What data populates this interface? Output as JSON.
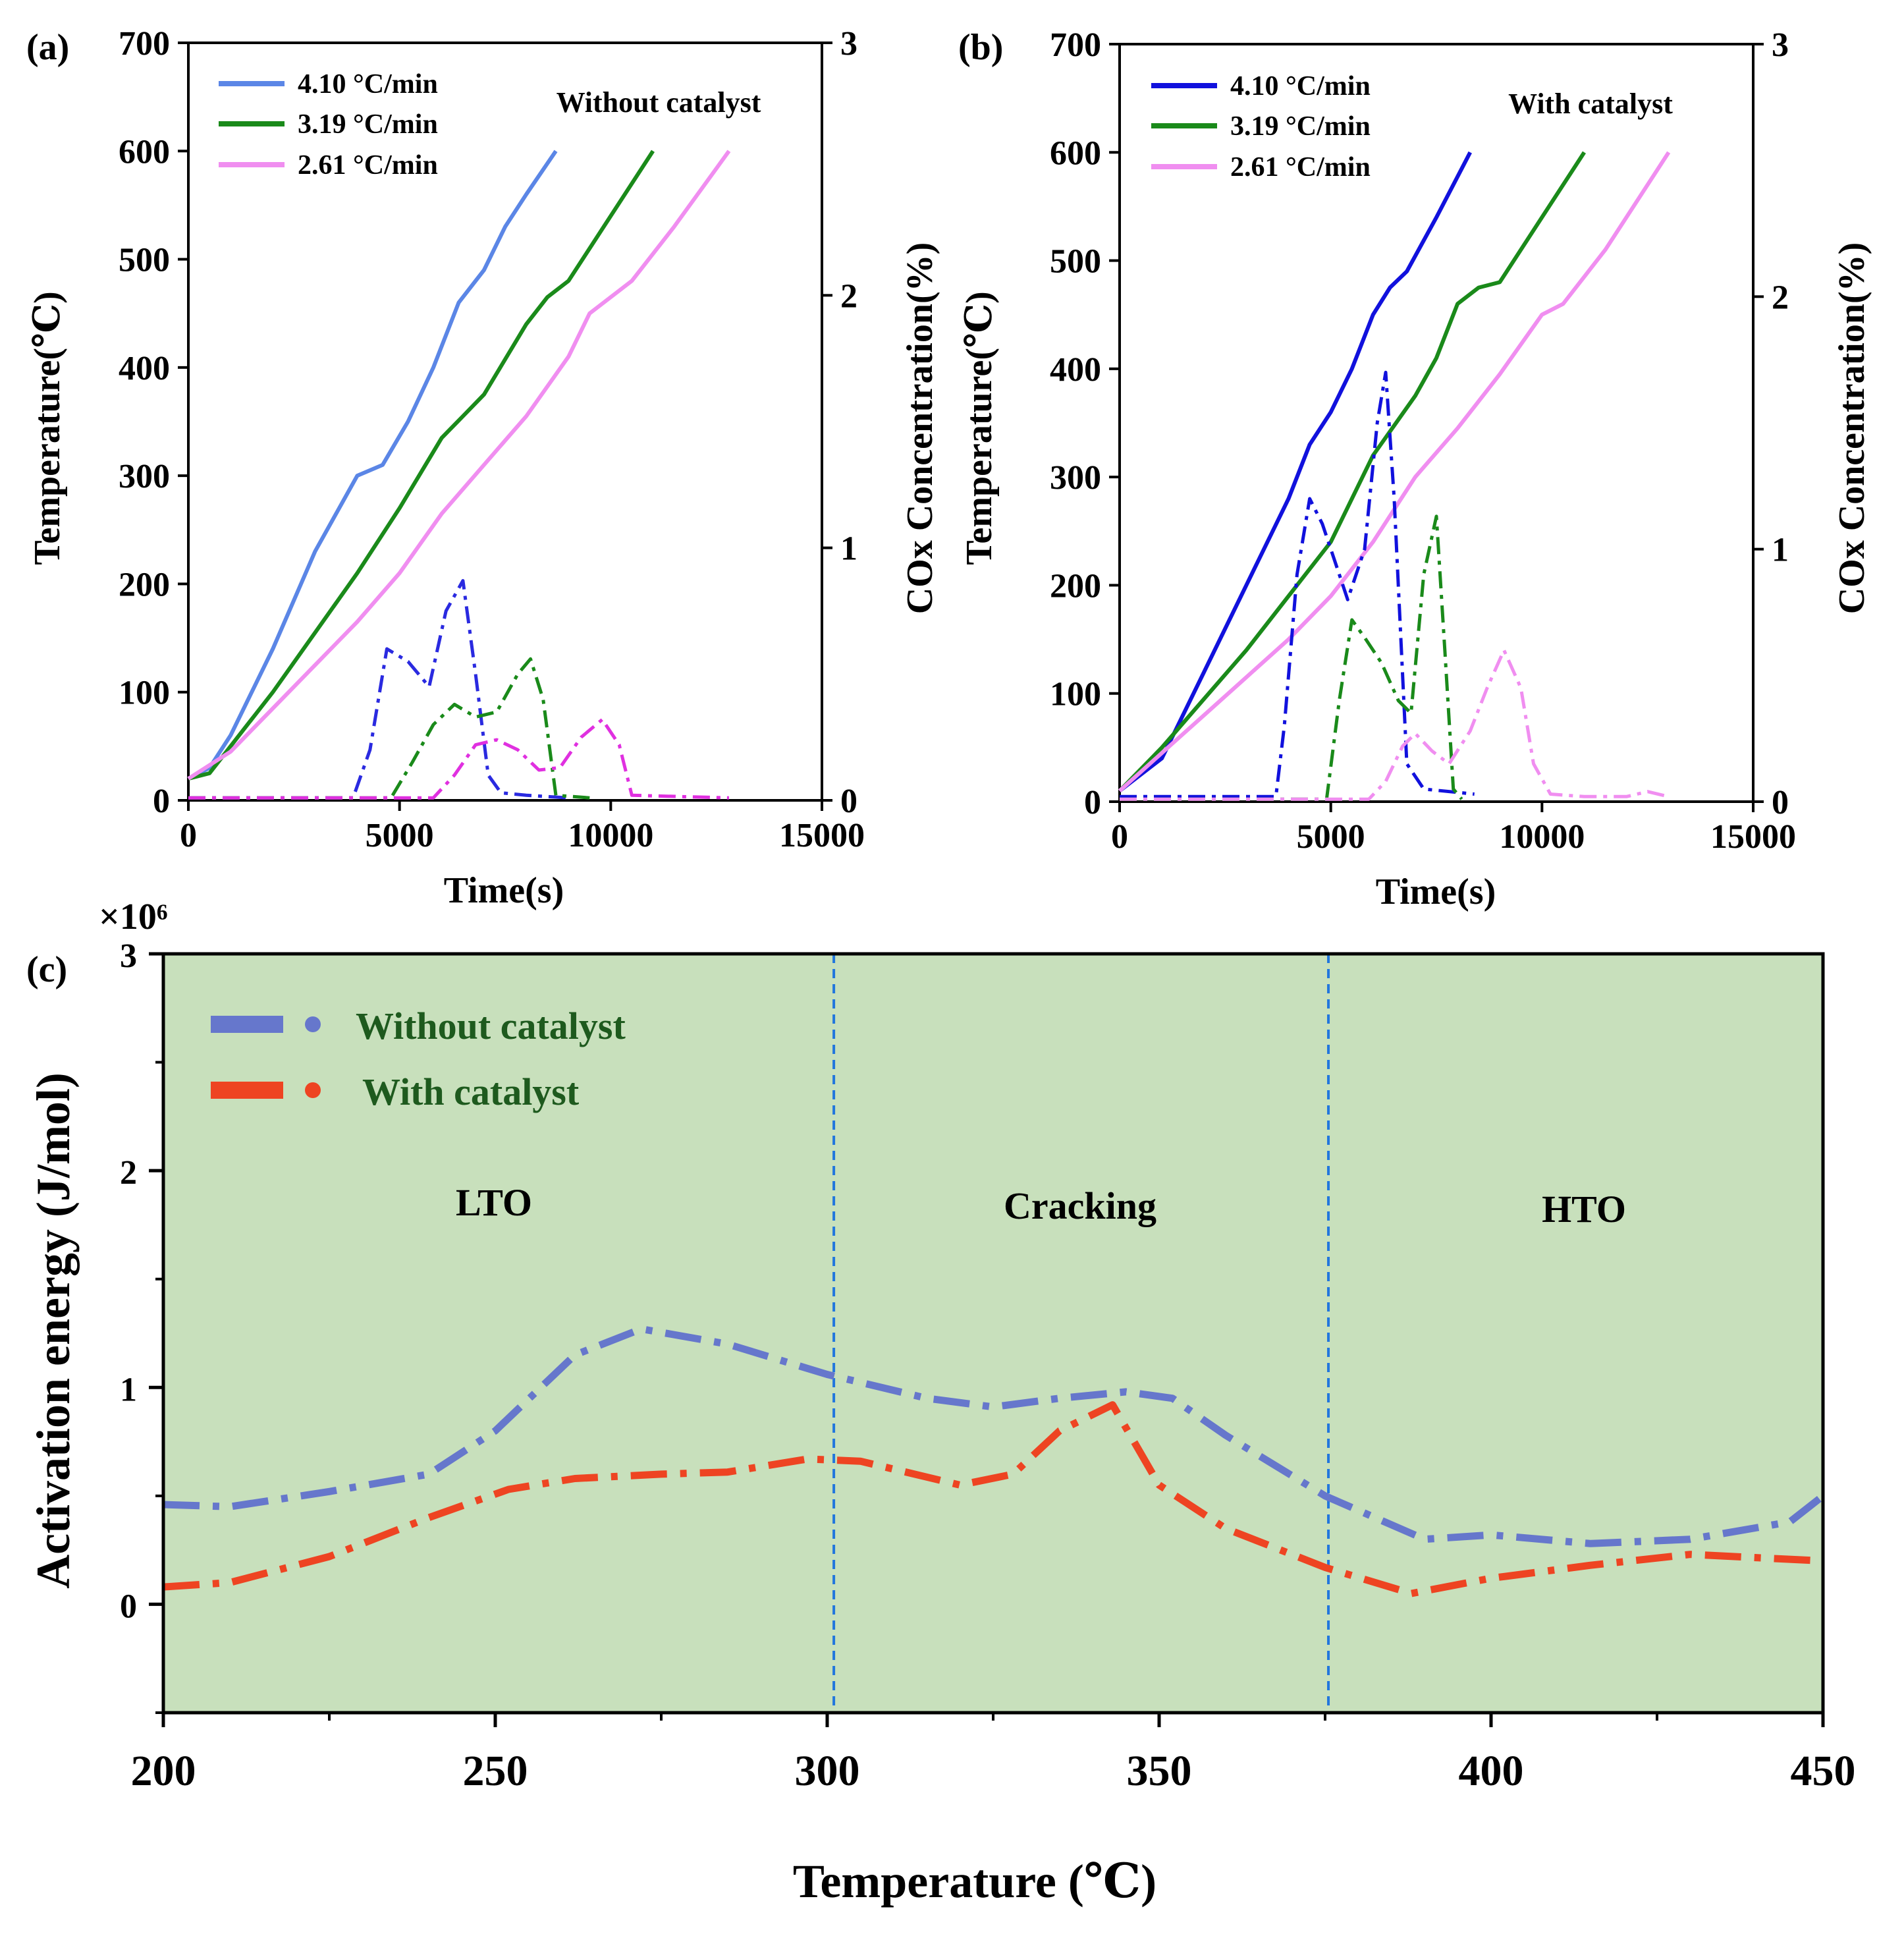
{
  "chart_data": [
    {
      "id": "a",
      "type": "line",
      "panel_label": "(a)",
      "condition": "Without catalyst",
      "xlabel": "Time(s)",
      "ylabel_left": "Temperature(℃)",
      "ylabel_right": "COx Concentration(%)",
      "xlim": [
        0,
        15000
      ],
      "ylim_left": [
        0,
        700
      ],
      "ylim_right": [
        0,
        3
      ],
      "x_ticks": [
        "0",
        "5000",
        "10000",
        "15000"
      ],
      "y_left_ticks": [
        "0",
        "100",
        "200",
        "300",
        "400",
        "500",
        "600",
        "700"
      ],
      "y_right_ticks": [
        "0",
        "1",
        "2",
        "3"
      ],
      "legend": [
        "4.10 °C/min",
        "3.19 °C/min",
        "2.61 °C/min"
      ],
      "series": [
        {
          "name": "4.10 °C/min",
          "axis": "left",
          "style": "solid",
          "color": "#5b86e6",
          "x": [
            0,
            500,
            1000,
            2000,
            3000,
            4000,
            4600,
            5200,
            5800,
            6400,
            6700,
            7000,
            7500,
            8000,
            8700
          ],
          "y": [
            20,
            30,
            60,
            140,
            230,
            300,
            310,
            350,
            400,
            460,
            475,
            490,
            530,
            560,
            600
          ]
        },
        {
          "name": "3.19 °C/min",
          "axis": "left",
          "style": "solid",
          "color": "#1a8a1a",
          "x": [
            0,
            500,
            1000,
            2000,
            3000,
            4000,
            5000,
            6000,
            6500,
            7000,
            8000,
            8500,
            9000,
            10000,
            11000
          ],
          "y": [
            20,
            25,
            50,
            100,
            155,
            210,
            270,
            335,
            355,
            375,
            440,
            465,
            480,
            540,
            600
          ]
        },
        {
          "name": "2.61 °C/min",
          "axis": "left",
          "style": "solid",
          "color": "#f08ef0",
          "x": [
            0,
            1000,
            2000,
            3000,
            4000,
            5000,
            6000,
            7000,
            8000,
            9000,
            9500,
            10500,
            11500,
            12800
          ],
          "y": [
            20,
            45,
            85,
            125,
            165,
            210,
            265,
            310,
            355,
            410,
            450,
            480,
            530,
            600
          ]
        },
        {
          "name": "4.10 °C/min COx",
          "axis": "right",
          "style": "dashdot",
          "color": "#2a2ae0",
          "x": [
            0,
            3900,
            4300,
            4700,
            5200,
            5700,
            6100,
            6500,
            6800,
            7100,
            7400,
            8000,
            9000
          ],
          "y": [
            0.01,
            0.01,
            0.2,
            0.6,
            0.55,
            0.45,
            0.75,
            0.87,
            0.5,
            0.1,
            0.03,
            0.02,
            0.01
          ]
        },
        {
          "name": "3.19 °C/min COx",
          "axis": "right",
          "style": "dashdot",
          "color": "#1a8a1a",
          "x": [
            0,
            4800,
            5300,
            5800,
            6300,
            6800,
            7300,
            7800,
            8100,
            8400,
            8700,
            9500
          ],
          "y": [
            0.01,
            0.01,
            0.15,
            0.3,
            0.38,
            0.33,
            0.35,
            0.5,
            0.56,
            0.4,
            0.02,
            0.01
          ]
        },
        {
          "name": "2.61 °C/min COx",
          "axis": "right",
          "style": "dashdot",
          "color": "#e030e0",
          "x": [
            0,
            5800,
            6300,
            6800,
            7300,
            7800,
            8300,
            8800,
            9300,
            9800,
            10200,
            10500,
            12800
          ],
          "y": [
            0.01,
            0.01,
            0.1,
            0.22,
            0.24,
            0.2,
            0.12,
            0.13,
            0.25,
            0.32,
            0.22,
            0.02,
            0.01
          ]
        }
      ]
    },
    {
      "id": "b",
      "type": "line",
      "panel_label": "(b)",
      "condition": "With catalyst",
      "xlabel": "Time(s)",
      "ylabel_left": "Temperature(℃)",
      "ylabel_right": "COx Concentration(%)",
      "xlim": [
        0,
        15000
      ],
      "ylim_left": [
        0,
        700
      ],
      "ylim_right": [
        0,
        3
      ],
      "x_ticks": [
        "0",
        "5000",
        "10000",
        "15000"
      ],
      "y_left_ticks": [
        "0",
        "100",
        "200",
        "300",
        "400",
        "500",
        "600",
        "700"
      ],
      "y_right_ticks": [
        "0",
        "1",
        "2",
        "3"
      ],
      "legend": [
        "4.10 °C/min",
        "3.19 °C/min",
        "2.61 °C/min"
      ],
      "series": [
        {
          "name": "4.10 °C/min",
          "axis": "left",
          "style": "solid",
          "color": "#1111dd",
          "x": [
            0,
            1000,
            2000,
            3000,
            4000,
            4500,
            5000,
            5500,
            6000,
            6400,
            6800,
            7500,
            8300
          ],
          "y": [
            10,
            40,
            120,
            200,
            280,
            330,
            360,
            400,
            450,
            475,
            490,
            540,
            600
          ]
        },
        {
          "name": "3.19 °C/min",
          "axis": "left",
          "style": "solid",
          "color": "#1a8a1a",
          "x": [
            0,
            1000,
            2000,
            3000,
            4000,
            5000,
            6000,
            7000,
            7500,
            8000,
            8500,
            9000,
            10000,
            11000
          ],
          "y": [
            10,
            50,
            95,
            140,
            190,
            240,
            320,
            375,
            410,
            460,
            475,
            480,
            540,
            600
          ]
        },
        {
          "name": "2.61 °C/min",
          "axis": "left",
          "style": "solid",
          "color": "#f08ef0",
          "x": [
            0,
            1000,
            2000,
            3000,
            4000,
            5000,
            6000,
            7000,
            8000,
            9000,
            10000,
            10500,
            11500,
            13000
          ],
          "y": [
            10,
            45,
            80,
            115,
            150,
            190,
            240,
            300,
            345,
            395,
            450,
            460,
            510,
            600
          ]
        },
        {
          "name": "4.10 °C/min COx",
          "axis": "right",
          "style": "dashdot",
          "color": "#1111dd",
          "x": [
            0,
            3700,
            3900,
            4200,
            4500,
            4800,
            5100,
            5400,
            5800,
            6100,
            6300,
            6500,
            6800,
            7200,
            8400
          ],
          "y": [
            0.02,
            0.02,
            0.3,
            0.9,
            1.2,
            1.1,
            0.95,
            0.8,
            1.0,
            1.5,
            1.7,
            1.2,
            0.15,
            0.05,
            0.03
          ]
        },
        {
          "name": "3.19 °C/min COx",
          "axis": "right",
          "style": "dashdot",
          "color": "#1a8a1a",
          "x": [
            0,
            4900,
            5200,
            5500,
            5800,
            6200,
            6600,
            6900,
            7200,
            7500,
            7700,
            7900,
            8100
          ],
          "y": [
            0.01,
            0.01,
            0.4,
            0.72,
            0.65,
            0.55,
            0.4,
            0.35,
            0.9,
            1.13,
            0.6,
            0.05,
            0.01
          ]
        },
        {
          "name": "2.61 °C/min COx",
          "axis": "right",
          "style": "dashdot",
          "color": "#f08ef0",
          "x": [
            0,
            5900,
            6300,
            6700,
            7000,
            7400,
            7800,
            8300,
            8700,
            9100,
            9500,
            9800,
            10200,
            11000,
            12000,
            12500,
            13000
          ],
          "y": [
            0.01,
            0.01,
            0.08,
            0.22,
            0.27,
            0.2,
            0.15,
            0.28,
            0.45,
            0.6,
            0.45,
            0.15,
            0.03,
            0.02,
            0.02,
            0.04,
            0.02
          ]
        }
      ]
    },
    {
      "id": "c",
      "type": "line",
      "panel_label": "(c)",
      "xlabel": "Temperature (℃)",
      "ylabel": "Activation energy (J/mol)",
      "multiplier": "×10⁶",
      "xlim": [
        200,
        450
      ],
      "ylim": [
        -0.5,
        3
      ],
      "x_ticks": [
        "200",
        "250",
        "300",
        "350",
        "400",
        "450"
      ],
      "y_ticks": [
        "0",
        "1",
        "2",
        "3"
      ],
      "background": "#c8e0bc",
      "region_dividers": [
        301,
        375.5
      ],
      "regions": [
        "LTO",
        "Cracking",
        "HTO"
      ],
      "legend": [
        "Without catalyst",
        "With catalyst"
      ],
      "series": [
        {
          "name": "Without catalyst",
          "style": "dashdot",
          "color": "#6677cc",
          "x": [
            200,
            210,
            225,
            240,
            250,
            262,
            272,
            285,
            300,
            315,
            325,
            335,
            345,
            352,
            360,
            375,
            390,
            400,
            415,
            430,
            445,
            450
          ],
          "y": [
            0.46,
            0.45,
            0.52,
            0.6,
            0.8,
            1.15,
            1.27,
            1.2,
            1.06,
            0.95,
            0.91,
            0.95,
            0.98,
            0.95,
            0.78,
            0.5,
            0.3,
            0.32,
            0.28,
            0.3,
            0.38,
            0.5
          ]
        },
        {
          "name": "With catalyst",
          "style": "dashdot",
          "color": "#ee4422",
          "x": [
            200,
            210,
            225,
            240,
            252,
            262,
            275,
            285,
            297,
            305,
            320,
            328,
            335,
            343,
            350,
            360,
            375,
            388,
            400,
            415,
            430,
            450
          ],
          "y": [
            0.08,
            0.1,
            0.22,
            0.4,
            0.53,
            0.58,
            0.6,
            0.61,
            0.67,
            0.66,
            0.55,
            0.6,
            0.8,
            0.92,
            0.55,
            0.35,
            0.17,
            0.05,
            0.12,
            0.18,
            0.23,
            0.2
          ]
        }
      ]
    }
  ]
}
